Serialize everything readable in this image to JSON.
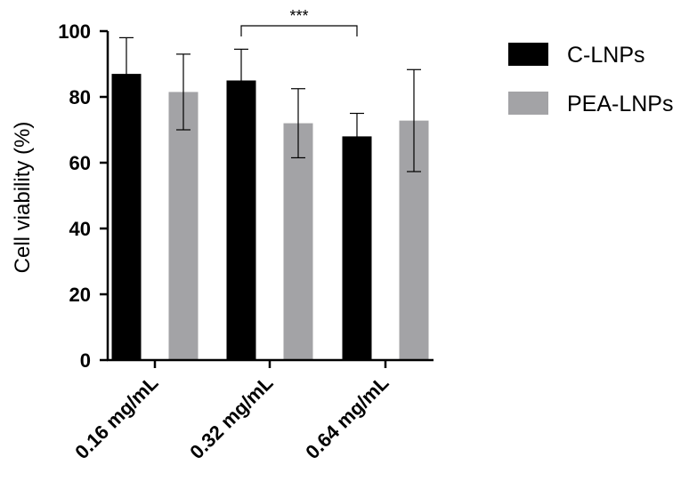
{
  "chart_data": {
    "type": "bar",
    "categories": [
      "0.16 mg/mL",
      "0.32 mg/mL",
      "0.64 mg/mL"
    ],
    "series": [
      {
        "name": "C-LNPs",
        "color": "#000000",
        "values": [
          87.0,
          85.0,
          68.0
        ],
        "errors": [
          11.0,
          9.5,
          7.0
        ]
      },
      {
        "name": "PEA-LNPs",
        "color": "#a3a3a6",
        "values": [
          81.5,
          72.0,
          72.8
        ],
        "errors": [
          11.5,
          10.5,
          15.5
        ]
      }
    ],
    "ylabel": "Cell viability (%)",
    "xlabel": "",
    "ylim": [
      0,
      100
    ],
    "yticks": [
      "0",
      "20",
      "40",
      "60",
      "80",
      "100"
    ],
    "legend_position": "top-right",
    "grid": false,
    "annotations": [
      {
        "text": "***",
        "from": {
          "category": 1,
          "series": 0
        },
        "to": {
          "category": 2,
          "series": 0
        }
      }
    ]
  }
}
